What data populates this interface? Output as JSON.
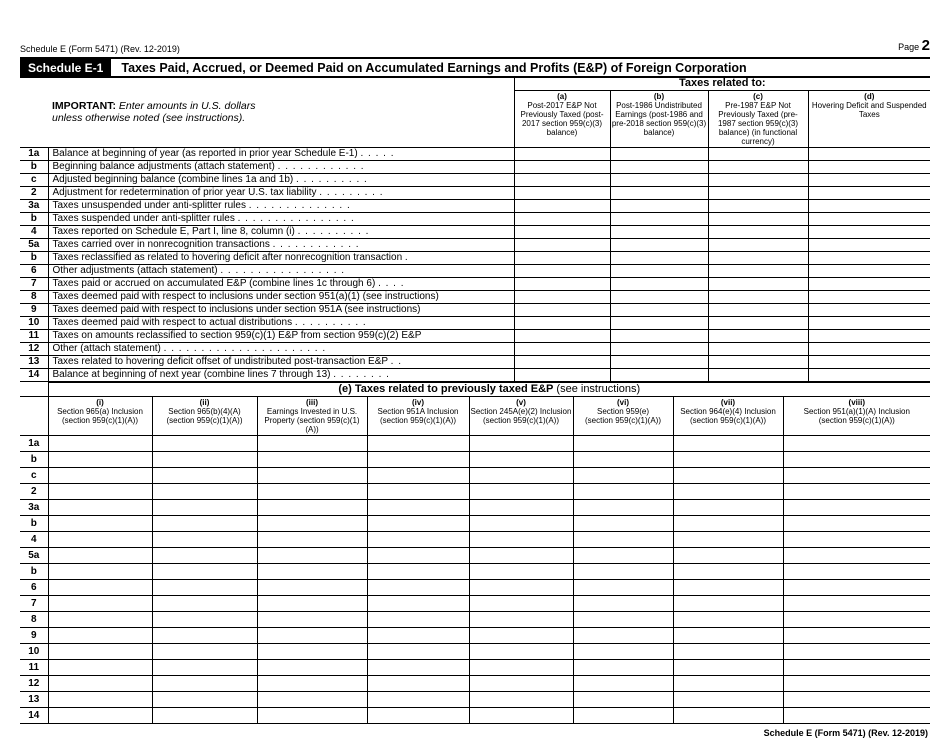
{
  "header": {
    "form_id": "Schedule E (Form 5471) (Rev. 12-2019)",
    "page_label": "Page",
    "page_number": "2"
  },
  "schedule": {
    "label": "Schedule E-1",
    "title": "Taxes Paid, Accrued, or Deemed Paid on Accumulated Earnings and Profits (E&P) of Foreign Corporation"
  },
  "important": {
    "bold": "IMPORTANT:",
    "text": " Enter amounts in U.S. dollars unless otherwise noted (see instructions)."
  },
  "taxes_related": "Taxes related to:",
  "columns": [
    {
      "letter": "(a)",
      "text": "Post-2017 E&P Not Previously Taxed (post-2017 section 959(c)(3) balance)"
    },
    {
      "letter": "(b)",
      "text": "Post-1986 Undistributed Earnings (post-1986 and pre-2018 section 959(c)(3) balance)"
    },
    {
      "letter": "(c)",
      "text": "Pre-1987 E&P Not Previously Taxed (pre-1987 section 959(c)(3) balance) (in functional currency)"
    },
    {
      "letter": "(d)",
      "text": "Hovering Deficit and Suspended Taxes"
    }
  ],
  "lines": [
    {
      "num": "1a",
      "text": "Balance at beginning of year (as reported in prior year Schedule E-1)",
      "dots": ". . . . ."
    },
    {
      "num": "b",
      "text": "Beginning balance adjustments (attach statement)",
      "dots": ". . . . . . . . . . . ."
    },
    {
      "num": "c",
      "text": "Adjusted beginning balance (combine lines 1a and 1b)",
      "dots": ". . . . . . . . . ."
    },
    {
      "num": "2",
      "text": "Adjustment for redetermination of prior year U.S. tax liability",
      "dots": ". . . . . . . . ."
    },
    {
      "num": "3a",
      "text": "Taxes unsuspended under anti-splitter rules",
      "dots": ". . . . . . . . . . . . . ."
    },
    {
      "num": "b",
      "text": "Taxes suspended under anti-splitter rules",
      "dots": ". . . . . . . . . . . . . . . ."
    },
    {
      "num": "4",
      "text": "Taxes reported on Schedule E, Part I, line 8, column (i)",
      "dots": ". . . . . . . . . ."
    },
    {
      "num": "5a",
      "text": "Taxes carried over in nonrecognition transactions",
      "dots": ". . . . . . . . . . . ."
    },
    {
      "num": "b",
      "text": "Taxes reclassified as related to hovering deficit after nonrecognition transaction",
      "dots": "."
    },
    {
      "num": "6",
      "text": "Other adjustments (attach statement)",
      "dots": ". . . . . . . . . . . . . . . . ."
    },
    {
      "num": "7",
      "text": "Taxes paid or accrued on accumulated E&P (combine lines 1c through 6)",
      "dots": ". . . ."
    },
    {
      "num": "8",
      "text": "Taxes deemed paid with respect to inclusions under section 951(a)(1) (see instructions)",
      "dots": ""
    },
    {
      "num": "9",
      "text": "Taxes deemed paid with respect to inclusions under section 951A (see instructions)",
      "dots": ""
    },
    {
      "num": "10",
      "text": "Taxes deemed paid with respect to actual distributions",
      "dots": ". . . . . . . . . ."
    },
    {
      "num": "11",
      "text": "Taxes on amounts reclassified to section 959(c)(1) E&P from section 959(c)(2) E&P",
      "dots": ""
    },
    {
      "num": "12",
      "text": "Other (attach statement)",
      "dots": ". . . . . . . . . . . . . . . . . . . . . ."
    },
    {
      "num": "13",
      "text": "Taxes related to hovering deficit offset of undistributed post-transaction E&P",
      "dots": ". ."
    },
    {
      "num": "14",
      "text": "Balance at beginning of next year (combine lines 7 through 13)",
      "dots": ". . . . . . . ."
    }
  ],
  "section_e": {
    "bold": "(e) Taxes related to previously taxed E&P",
    "normal": " (see instructions)"
  },
  "e_columns": [
    {
      "num": "(i)",
      "l1": "Section 965(a) Inclusion",
      "l2": "(section 959(c)(1)(A))"
    },
    {
      "num": "(ii)",
      "l1": "Section 965(b)(4)(A)",
      "l2": "(section 959(c)(1)(A))"
    },
    {
      "num": "(iii)",
      "l1": "Earnings Invested in U.S.",
      "l2": "Property (section 959(c)(1)(A))"
    },
    {
      "num": "(iv)",
      "l1": "Section 951A Inclusion",
      "l2": "(section 959(c)(1)(A))"
    },
    {
      "num": "(v)",
      "l1": "Section 245A(e)(2) Inclusion",
      "l2": "(section 959(c)(1)(A))"
    },
    {
      "num": "(vi)",
      "l1": "Section 959(e)",
      "l2": "(section 959(c)(1)(A))"
    },
    {
      "num": "(vii)",
      "l1": "Section 964(e)(4) Inclusion",
      "l2": "(section 959(c)(1)(A))"
    },
    {
      "num": "(viii)",
      "l1": "Section 951(a)(1)(A) Inclusion",
      "l2": "(section 959(c)(1)(A))"
    }
  ],
  "footer": "Schedule E (Form 5471) (Rev. 12-2019)"
}
